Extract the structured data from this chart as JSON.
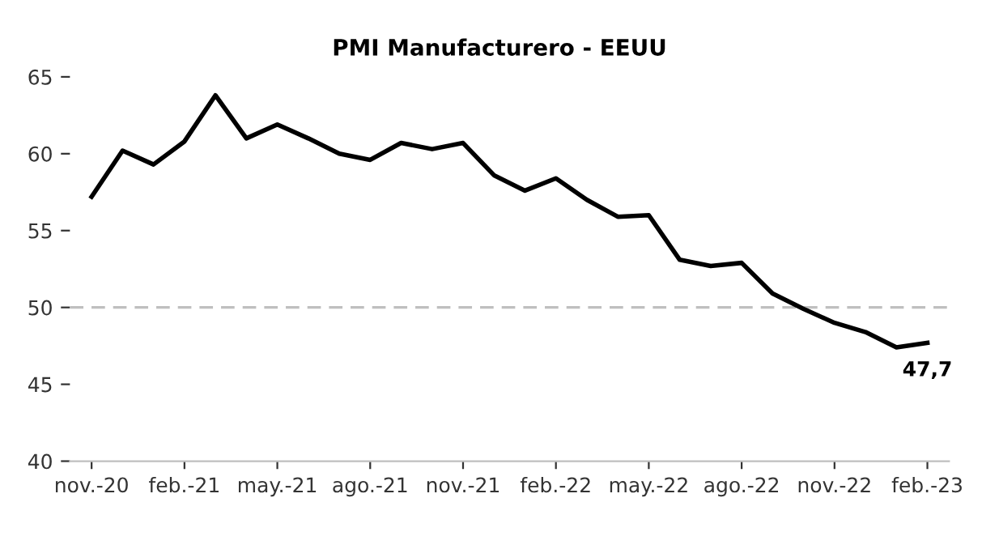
{
  "chart_data": {
    "type": "line",
    "title": "PMI Manufacturero - EEUU",
    "categories": [
      "nov.-20",
      null,
      null,
      "feb.-21",
      null,
      null,
      "may.-21",
      null,
      null,
      "ago.-21",
      null,
      null,
      "nov.-21",
      null,
      null,
      "feb.-22",
      null,
      null,
      "may.-22",
      null,
      null,
      "ago.-22",
      null,
      null,
      "nov.-22",
      null,
      null,
      "feb.-23"
    ],
    "series": [
      {
        "color": "#000000",
        "values": [
          57.2,
          60.2,
          59.3,
          60.8,
          63.8,
          61.0,
          61.9,
          61.0,
          60.0,
          59.6,
          60.7,
          60.3,
          60.7,
          58.6,
          57.6,
          58.4,
          57.0,
          55.9,
          56.0,
          53.1,
          52.7,
          52.9,
          50.9,
          49.9,
          49.0,
          48.4,
          47.4,
          47.7
        ],
        "value_labels": [
          null,
          null,
          null,
          null,
          null,
          null,
          null,
          null,
          null,
          null,
          null,
          null,
          null,
          null,
          null,
          null,
          null,
          null,
          null,
          null,
          null,
          null,
          null,
          null,
          null,
          null,
          null,
          "47,7"
        ]
      }
    ],
    "ylim": [
      40,
      65
    ],
    "yticks": [
      40,
      45,
      50,
      55,
      60,
      65
    ],
    "ref_lines": [
      {
        "axis": "y",
        "value": 50,
        "color": "#bfbfbf",
        "line_style": "dashed"
      }
    ]
  }
}
